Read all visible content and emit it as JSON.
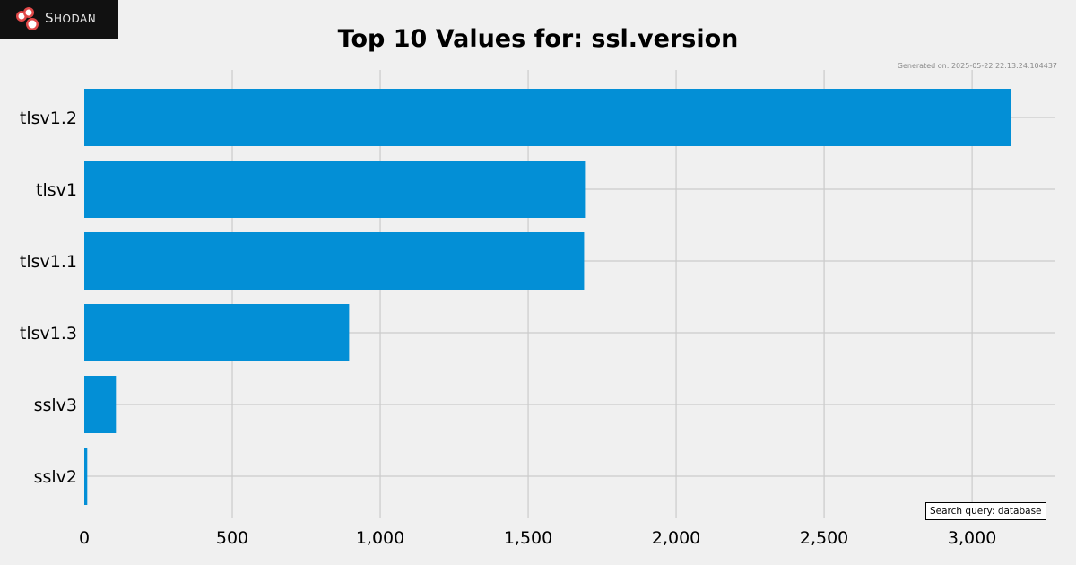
{
  "logo": {
    "text": "Shodan"
  },
  "chart_data": {
    "type": "bar",
    "orientation": "horizontal",
    "title": "Top 10 Values for: ssl.version",
    "generated": "Generated on: 2025-05-22 22:13:24.104437",
    "query": "Search query: database",
    "categories": [
      "tlsv1.2",
      "tlsv1",
      "tlsv1.1",
      "tlsv1.3",
      "sslv3",
      "sslv2"
    ],
    "values": [
      3130,
      1692,
      1689,
      895,
      107,
      10
    ],
    "xlim": [
      0,
      3290
    ],
    "xticks": [
      0,
      500,
      1000,
      1500,
      2000,
      2500,
      3000
    ],
    "xtick_labels": [
      "0",
      "500",
      "1,000",
      "1,500",
      "2,000",
      "2,500",
      "3,000"
    ],
    "grid": true,
    "bar_color": "#038fd6",
    "grid_color": "#cbcbcb",
    "background": "#f0f0f0"
  }
}
